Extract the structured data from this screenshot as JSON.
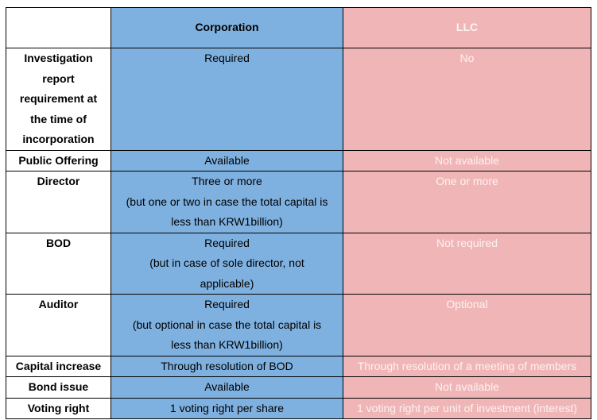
{
  "header": {
    "blank": "",
    "corporation": "Corporation",
    "llc": "LLC"
  },
  "rows": [
    {
      "label": [
        "Investigation",
        "report",
        "requirement at",
        "the time of",
        "incorporation"
      ],
      "corporation": [
        "Required"
      ],
      "llc": [
        "No"
      ]
    },
    {
      "label": [
        "Public Offering"
      ],
      "corporation": [
        "Available"
      ],
      "llc": [
        "Not available"
      ]
    },
    {
      "label": [
        "Director"
      ],
      "corporation": [
        "Three or more",
        "(but one or two in case the total capital is",
        "less than KRW1billion)"
      ],
      "llc": [
        "One or more"
      ]
    },
    {
      "label": [
        "BOD"
      ],
      "corporation": [
        "Required",
        "(but in case of sole director, not",
        "applicable)"
      ],
      "llc": [
        "Not required"
      ]
    },
    {
      "label": [
        "Auditor"
      ],
      "corporation": [
        "Required",
        "(but optional in case the total capital is",
        "less than KRW1billion)"
      ],
      "llc": [
        "Optional"
      ]
    },
    {
      "label": [
        "Capital increase"
      ],
      "corporation": [
        "Through resolution of BOD"
      ],
      "llc": [
        "Through resolution of a meeting of members"
      ]
    },
    {
      "label": [
        "Bond issue"
      ],
      "corporation": [
        "Available"
      ],
      "llc": [
        "Not available"
      ]
    },
    {
      "label": [
        "Voting right"
      ],
      "corporation": [
        "1 voting right per share"
      ],
      "llc": [
        "1 voting right per unit of investment (interest)"
      ]
    }
  ],
  "colors": {
    "corporation_bg": "#7fb1e0",
    "llc_bg": "#f0b6b7",
    "llc_text": "#fdf1f1"
  }
}
